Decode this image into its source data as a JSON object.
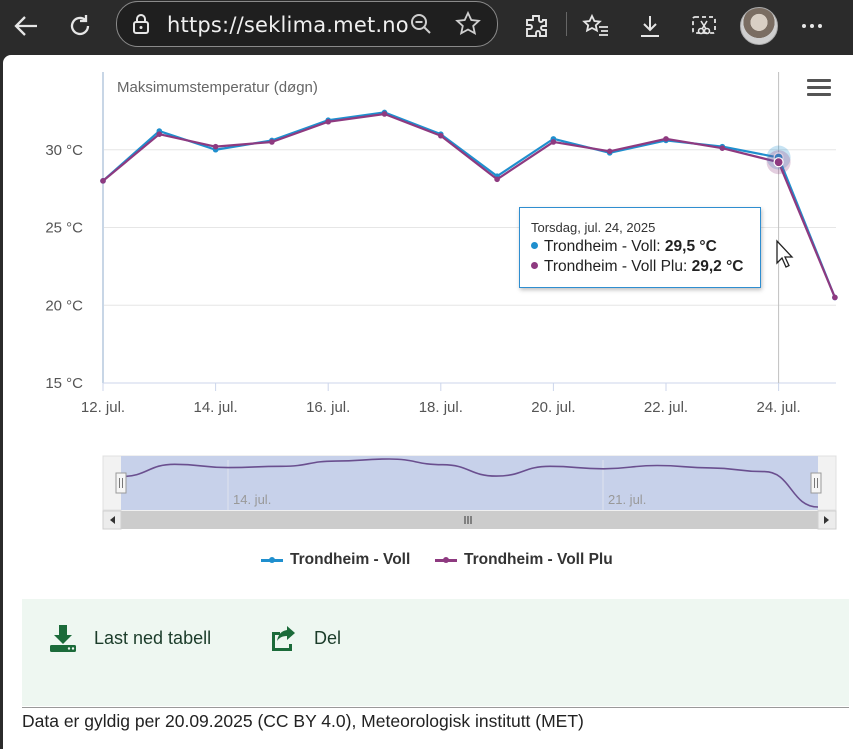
{
  "browser": {
    "url": "https://seklima.met.no",
    "icons": [
      "back-arrow-icon",
      "reload-icon",
      "lock-icon",
      "zoom-out-icon",
      "favorite-star-icon",
      "extensions-icon",
      "favorites-list-icon",
      "download-icon",
      "screen-capture-icon",
      "profile-avatar",
      "more-menu-icon"
    ]
  },
  "chart_data": {
    "type": "line",
    "title": "Maksimumstemperatur (døgn)",
    "x": [
      "2025-07-12",
      "2025-07-13",
      "2025-07-14",
      "2025-07-15",
      "2025-07-16",
      "2025-07-17",
      "2025-07-18",
      "2025-07-19",
      "2025-07-20",
      "2025-07-21",
      "2025-07-22",
      "2025-07-23",
      "2025-07-24",
      "2025-07-25"
    ],
    "x_tick_labels": [
      "12. jul.",
      "14. jul.",
      "16. jul.",
      "18. jul.",
      "20. jul.",
      "22. jul.",
      "24. jul."
    ],
    "x_tick_dates": [
      "2025-07-12",
      "2025-07-14",
      "2025-07-16",
      "2025-07-18",
      "2025-07-20",
      "2025-07-22",
      "2025-07-24"
    ],
    "y_tick_labels": [
      "15 °C",
      "20 °C",
      "25 °C",
      "30 °C"
    ],
    "y_tick_values": [
      15,
      20,
      25,
      30
    ],
    "ylim": [
      15,
      35
    ],
    "grid": true,
    "legend_position": "bottom-center",
    "series": [
      {
        "name": "Trondheim - Voll",
        "color": "#1f8fce",
        "values": [
          28.0,
          31.2,
          30.0,
          30.6,
          31.9,
          32.4,
          31.0,
          28.3,
          30.7,
          29.8,
          30.6,
          30.2,
          29.5,
          20.5
        ]
      },
      {
        "name": "Trondheim - Voll Plu",
        "color": "#8e3a80",
        "values": [
          28.0,
          31.0,
          30.2,
          30.5,
          31.8,
          32.3,
          30.9,
          28.1,
          30.5,
          29.9,
          30.7,
          30.1,
          29.2,
          20.5
        ]
      }
    ],
    "highlight_date": "2025-07-24",
    "navigator_labels": [
      "14. jul.",
      "21. jul."
    ],
    "tooltip": {
      "date": "Torsdag, jul. 24, 2025",
      "rows": [
        {
          "label": "Trondheim - Voll: ",
          "value": "29,5 °C"
        },
        {
          "label": "Trondheim - Voll Plu: ",
          "value": "29,2 °C"
        }
      ]
    }
  },
  "actions": {
    "download_label": "Last ned tabell",
    "share_label": "Del"
  },
  "footer": {
    "text": "Data er gyldig per 20.09.2025 (CC BY 4.0), Meteorologisk institutt (MET)"
  },
  "colors": {
    "action_panel_bg": "#eef7f1",
    "action_icon": "#1b6b3a"
  }
}
